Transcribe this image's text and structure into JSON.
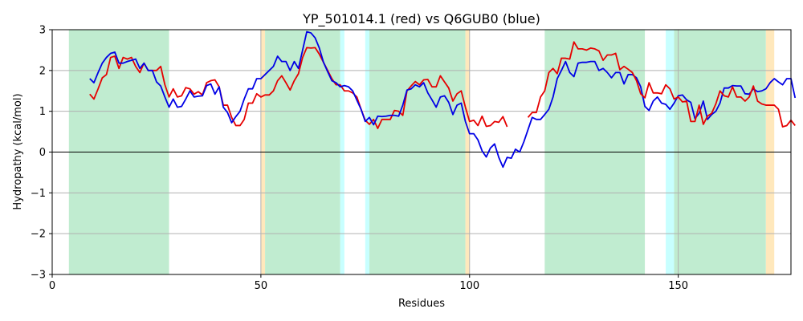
{
  "chart_data": {
    "type": "line",
    "title": "YP_501014.1 (red) vs Q6GUB0 (blue)",
    "xlabel": "Residues",
    "ylabel": "Hydropathy (kcal/mol)",
    "xlim": [
      0,
      177
    ],
    "ylim": [
      -3,
      3
    ],
    "xticks": [
      0,
      50,
      100,
      150
    ],
    "yticks": [
      -3,
      -2,
      -1,
      0,
      1,
      2,
      3
    ],
    "grid": "horizontal",
    "zero_line": true,
    "vertical_lines": [
      50,
      100,
      150
    ],
    "colors": {
      "red": "#e60000",
      "blue": "#0000e6",
      "green": "#c0ecd0",
      "cyan": "#c8ffff",
      "orange": "#ffe8bc"
    },
    "regions": [
      {
        "start": 4,
        "end": 28,
        "color": "green"
      },
      {
        "start": 50,
        "end": 51,
        "color": "orange"
      },
      {
        "start": 51,
        "end": 69,
        "color": "green"
      },
      {
        "start": 69,
        "end": 70,
        "color": "cyan"
      },
      {
        "start": 75,
        "end": 76,
        "color": "cyan"
      },
      {
        "start": 76,
        "end": 99,
        "color": "green"
      },
      {
        "start": 99,
        "end": 100,
        "color": "orange"
      },
      {
        "start": 118,
        "end": 142,
        "color": "green"
      },
      {
        "start": 147,
        "end": 149,
        "color": "cyan"
      },
      {
        "start": 149,
        "end": 171,
        "color": "green"
      },
      {
        "start": 171,
        "end": 173,
        "color": "orange"
      }
    ],
    "series": [
      {
        "color": "red",
        "x_start": 9,
        "values": [
          1.42,
          1.3,
          1.55,
          1.82,
          1.9,
          2.32,
          2.35,
          2.05,
          2.32,
          2.28,
          2.32,
          2.1,
          1.95,
          2.18,
          2.0,
          2.0,
          2.0,
          2.1,
          1.65,
          1.35,
          1.55,
          1.35,
          1.38,
          1.58,
          1.55,
          1.42,
          1.48,
          1.4,
          1.7,
          1.75,
          1.77,
          1.6,
          1.15,
          1.15,
          0.85,
          0.65,
          0.65,
          0.8,
          1.2,
          1.2,
          1.43,
          1.35,
          1.4,
          1.4,
          1.5,
          1.75,
          1.87,
          1.7,
          1.52,
          1.75,
          1.92,
          2.32,
          2.56,
          2.55,
          2.56,
          2.4,
          2.2,
          2.0,
          1.8,
          1.65,
          1.65,
          1.5,
          1.5,
          1.45,
          1.35,
          1.05,
          0.78,
          0.68,
          0.8,
          0.58,
          0.8,
          0.8,
          0.8,
          1.02,
          1.0,
          0.9,
          1.5,
          1.62,
          1.73,
          1.65,
          1.77,
          1.78,
          1.6,
          1.6,
          1.87,
          1.72,
          1.57,
          1.25,
          1.43,
          1.5,
          1.1,
          0.75,
          0.78,
          0.65,
          0.88,
          0.63,
          0.65,
          0.75,
          0.73,
          0.87,
          0.62
        ]
      },
      {
        "color": "blue",
        "x_start": 9,
        "values": [
          1.8,
          1.7,
          1.95,
          2.18,
          2.32,
          2.42,
          2.45,
          2.18,
          2.18,
          2.22,
          2.25,
          2.28,
          2.05,
          2.18,
          2.0,
          2.0,
          1.72,
          1.62,
          1.35,
          1.1,
          1.3,
          1.1,
          1.12,
          1.3,
          1.5,
          1.35,
          1.37,
          1.38,
          1.63,
          1.67,
          1.42,
          1.6,
          1.1,
          0.97,
          0.72,
          0.87,
          1.0,
          1.3,
          1.55,
          1.55,
          1.8,
          1.8,
          1.9,
          2.0,
          2.1,
          2.35,
          2.22,
          2.22,
          2.0,
          2.22,
          2.05,
          2.5,
          2.95,
          2.92,
          2.8,
          2.55,
          2.2,
          1.97,
          1.75,
          1.7,
          1.6,
          1.63,
          1.6,
          1.5,
          1.27,
          1.05,
          0.75,
          0.85,
          0.67,
          0.88,
          0.87,
          0.88,
          0.9,
          0.9,
          0.88,
          1.15,
          1.52,
          1.55,
          1.65,
          1.6,
          1.7,
          1.45,
          1.28,
          1.1,
          1.35,
          1.38,
          1.22,
          0.92,
          1.15,
          1.2,
          0.75,
          0.45,
          0.45,
          0.3,
          0.03,
          -0.12,
          0.1,
          0.2,
          -0.13,
          -0.37,
          -0.13,
          -0.15,
          0.07,
          0.0,
          0.25,
          0.55,
          0.85,
          0.8,
          0.8,
          0.92,
          1.05,
          1.35,
          1.8,
          2.0,
          2.22,
          1.95,
          1.85,
          2.18,
          2.2,
          2.2,
          2.22,
          2.22,
          2.0,
          2.05,
          1.95,
          1.82,
          1.95,
          1.95,
          1.67,
          1.9,
          1.9,
          1.82,
          1.6,
          1.12,
          1.02,
          1.25,
          1.35,
          1.2,
          1.17,
          1.05,
          1.2,
          1.38,
          1.4,
          1.28,
          1.22,
          0.82,
          0.95,
          1.25,
          0.8,
          0.92,
          1.0,
          1.2,
          1.57,
          1.57,
          1.63,
          1.62,
          1.62,
          1.43,
          1.42,
          1.55,
          1.48,
          1.5,
          1.55,
          1.7,
          1.8,
          1.72,
          1.65,
          1.8,
          1.8,
          1.33
        ]
      },
      {
        "color": "red",
        "x_start": 114,
        "values": [
          0.85,
          0.97,
          0.97,
          1.35,
          1.5,
          1.95,
          2.05,
          1.92,
          2.3,
          2.3,
          2.28,
          2.7,
          2.53,
          2.53,
          2.5,
          2.55,
          2.53,
          2.48,
          2.25,
          2.38,
          2.38,
          2.42,
          2.02,
          2.1,
          2.03,
          1.95,
          1.75,
          1.43,
          1.33,
          1.7,
          1.45,
          1.45,
          1.43,
          1.65,
          1.55,
          1.3,
          1.35,
          1.23,
          1.25,
          0.75,
          0.75,
          1.15,
          0.68,
          0.88,
          0.95,
          1.18,
          1.5,
          1.38,
          1.35,
          1.6,
          1.35,
          1.35,
          1.25,
          1.35,
          1.62,
          1.25,
          1.18,
          1.15,
          1.15,
          1.15,
          1.05,
          0.62,
          0.65,
          0.78,
          0.65
        ]
      }
    ]
  }
}
